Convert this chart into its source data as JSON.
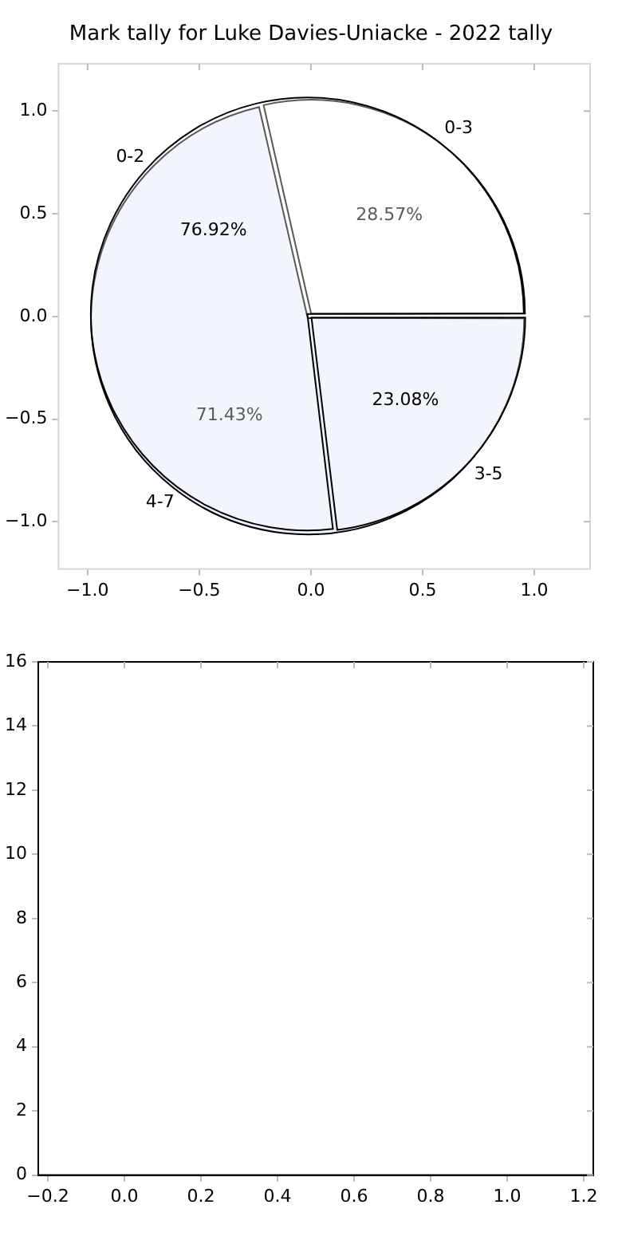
{
  "chart_data": [
    {
      "type": "scatter",
      "title": "Mark tally for Luke Davies-Uniacke - 2022 tally",
      "xlim": [
        -1.13,
        1.25
      ],
      "ylim": [
        -1.23,
        1.23
      ],
      "xticks": [
        {
          "value": -1,
          "label": "−1.0"
        },
        {
          "value": -0.5,
          "label": "−0.5"
        },
        {
          "value": 0,
          "label": "0.0"
        },
        {
          "value": 0.5,
          "label": "0.5"
        },
        {
          "value": 1,
          "label": "1.0"
        }
      ],
      "yticks": [
        {
          "value": -1,
          "label": "−1.0"
        },
        {
          "value": -0.5,
          "label": "−0.5"
        },
        {
          "value": 0,
          "label": "0.0"
        },
        {
          "value": 0.5,
          "label": "0.5"
        },
        {
          "value": 1,
          "label": "1.0"
        }
      ],
      "grid": false,
      "legend": false
    },
    {
      "type": "pie",
      "categories": [
        "0-3",
        "4-7"
      ],
      "values": [
        28.57,
        71.43
      ],
      "colors": [
        "#ffffff",
        "#ebf0fb"
      ],
      "value_labels": [
        "28.57%",
        "71.43%"
      ],
      "legend": false
    },
    {
      "type": "pie",
      "categories": [
        "0-2",
        "3-5"
      ],
      "values": [
        76.92,
        23.08
      ],
      "colors": [
        "#ffffff",
        "#ffffff"
      ],
      "value_labels": [
        "76.92%",
        "23.08%"
      ],
      "legend": false
    },
    {
      "type": "scatter",
      "xlim": [
        -0.225,
        1.225
      ],
      "ylim": [
        0,
        16
      ],
      "xticks": [
        {
          "value": -0.2,
          "label": "−0.2"
        },
        {
          "value": 0,
          "label": "0.0"
        },
        {
          "value": 0.2,
          "label": "0.2"
        },
        {
          "value": 0.4,
          "label": "0.4"
        },
        {
          "value": 0.6,
          "label": "0.6"
        },
        {
          "value": 0.8,
          "label": "0.8"
        },
        {
          "value": 1,
          "label": "1.0"
        },
        {
          "value": 1.2,
          "label": "1.2"
        }
      ],
      "yticks": [
        0,
        2,
        4,
        6,
        8,
        10,
        12,
        14,
        16
      ],
      "grid": false,
      "legend": false
    }
  ]
}
